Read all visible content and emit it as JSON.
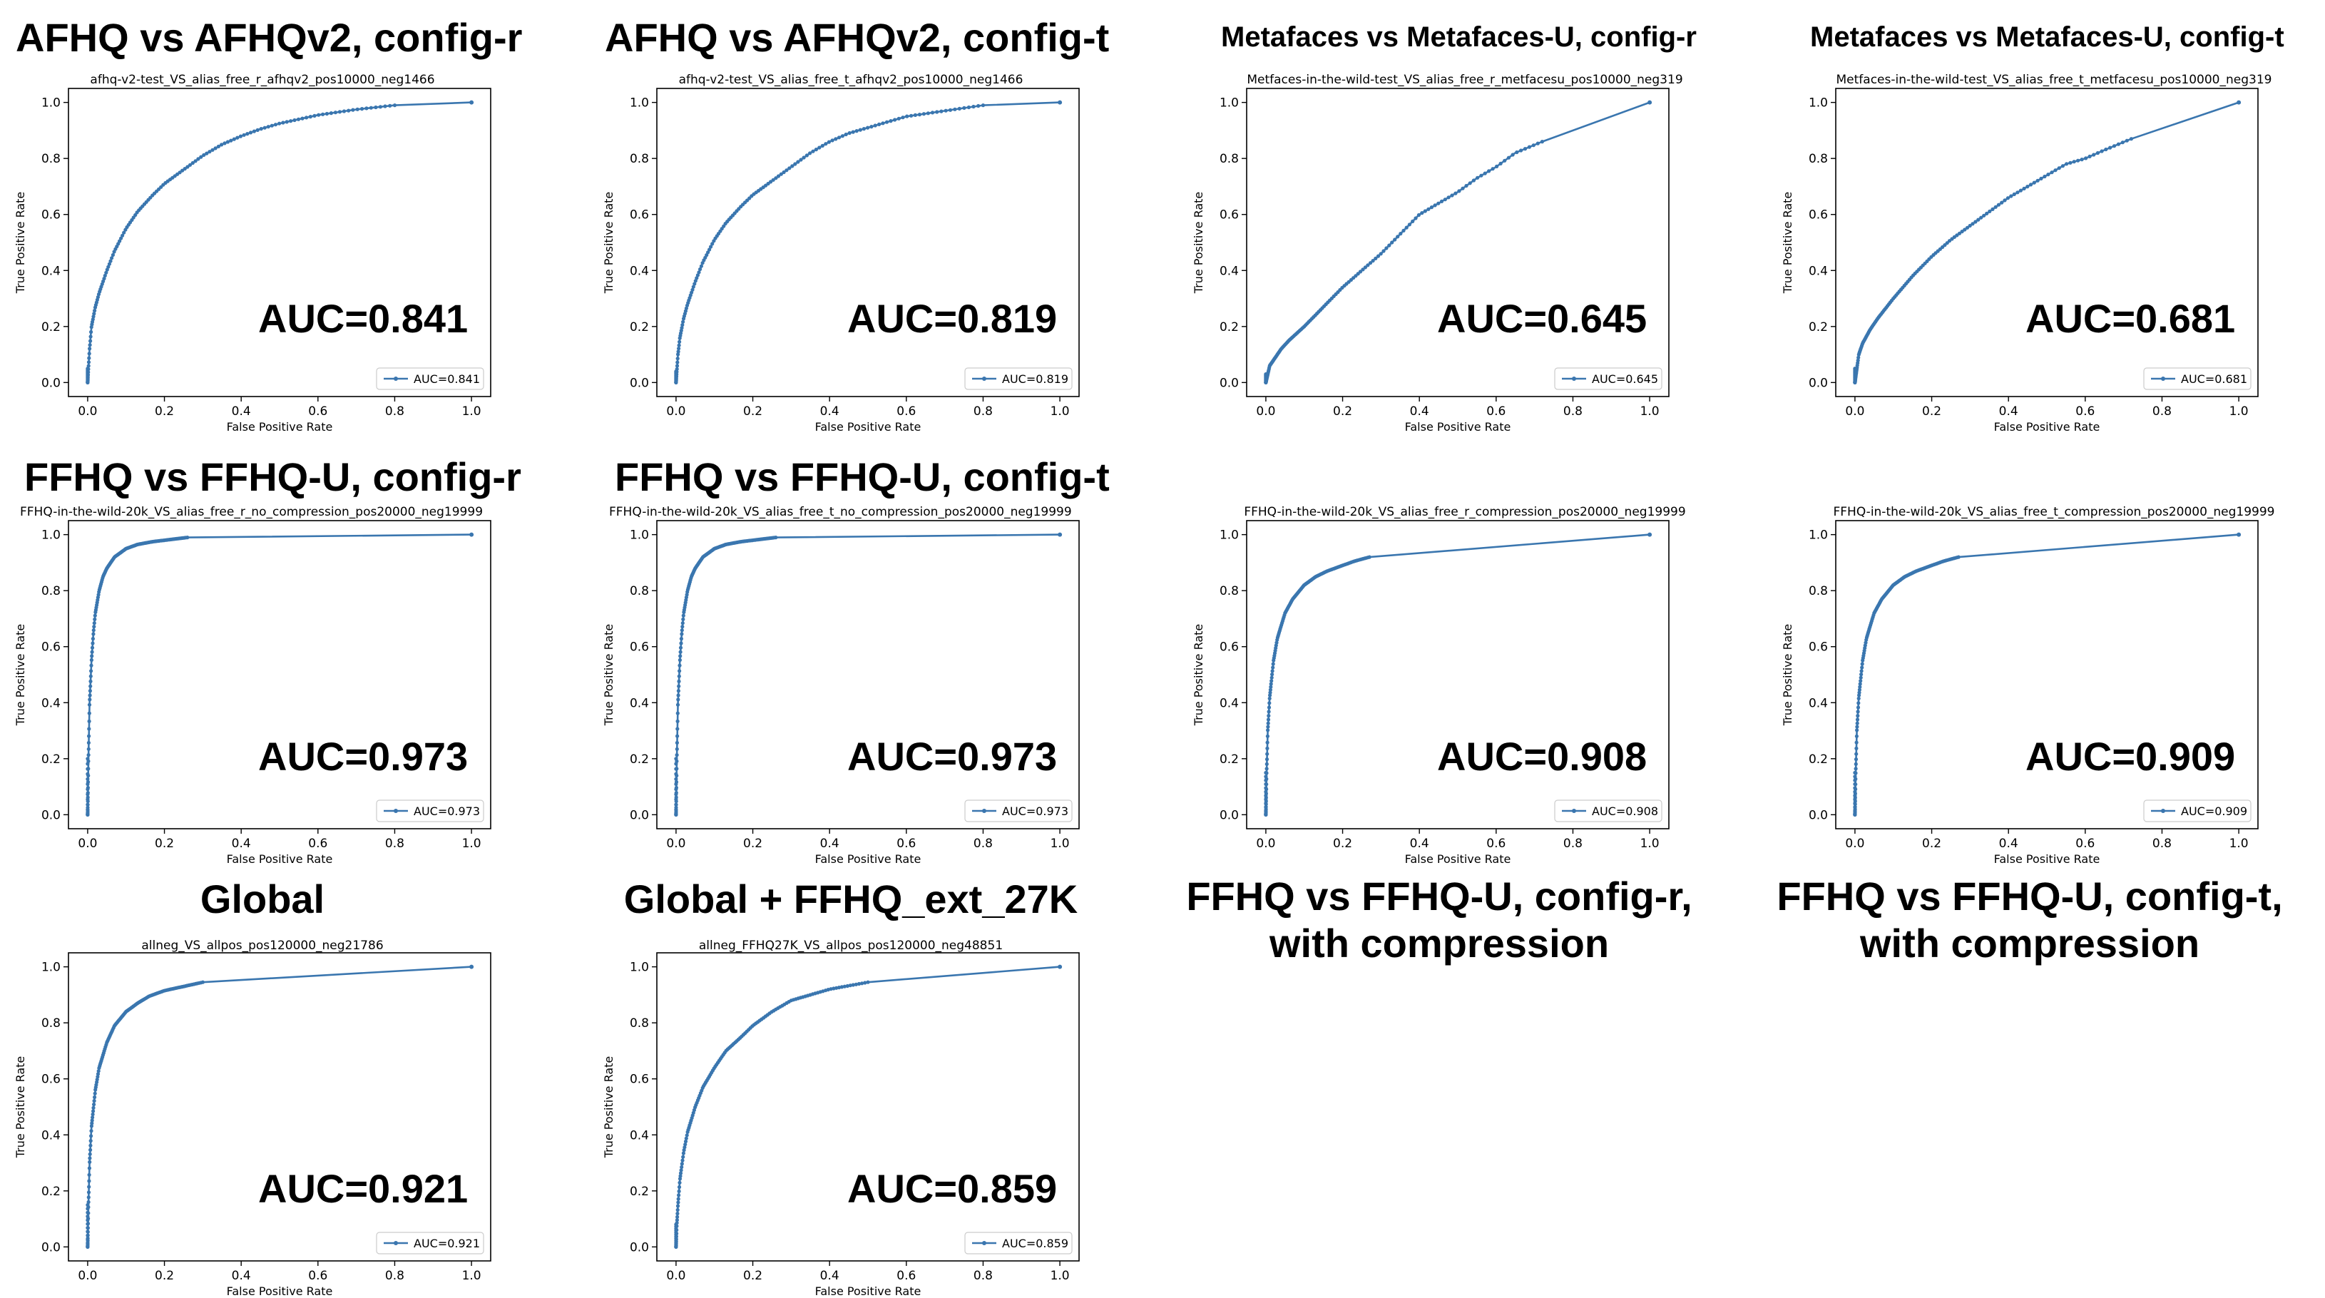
{
  "chart_data": [
    {
      "type": "line",
      "panel_title": "AFHQ vs AFHQv2, config-r",
      "title": "afhq-v2-test_VS_alias_free_r_afhqv2_pos10000_neg1466",
      "xlabel": "False Positive Rate",
      "ylabel": "True Positive Rate",
      "xlim": [
        0,
        1
      ],
      "ylim": [
        0,
        1
      ],
      "xticks": [
        "0.0",
        "0.2",
        "0.4",
        "0.6",
        "0.8",
        "1.0"
      ],
      "yticks": [
        "0.0",
        "0.2",
        "0.4",
        "0.6",
        "0.8",
        "1.0"
      ],
      "legend": "AUC=0.841",
      "legend_position": "lower-right",
      "annotation": "AUC=0.841",
      "series": [
        {
          "name": "AUC=0.841",
          "x": [
            0,
            0.002,
            0.005,
            0.01,
            0.02,
            0.03,
            0.05,
            0.07,
            0.1,
            0.13,
            0.17,
            0.2,
            0.25,
            0.3,
            0.35,
            0.4,
            0.45,
            0.5,
            0.55,
            0.6,
            0.65,
            0.7,
            0.8,
            1.0
          ],
          "y": [
            0,
            0.05,
            0.12,
            0.2,
            0.27,
            0.32,
            0.4,
            0.47,
            0.55,
            0.61,
            0.67,
            0.71,
            0.76,
            0.81,
            0.85,
            0.88,
            0.905,
            0.925,
            0.94,
            0.955,
            0.965,
            0.975,
            0.99,
            1.0
          ]
        }
      ]
    },
    {
      "type": "line",
      "panel_title": "AFHQ vs AFHQv2, config-t",
      "title": "afhq-v2-test_VS_alias_free_t_afhqv2_pos10000_neg1466",
      "xlabel": "False Positive Rate",
      "ylabel": "True Positive Rate",
      "xlim": [
        0,
        1
      ],
      "ylim": [
        0,
        1
      ],
      "xticks": [
        "0.0",
        "0.2",
        "0.4",
        "0.6",
        "0.8",
        "1.0"
      ],
      "yticks": [
        "0.0",
        "0.2",
        "0.4",
        "0.6",
        "0.8",
        "1.0"
      ],
      "legend": "AUC=0.819",
      "legend_position": "lower-right",
      "annotation": "AUC=0.819",
      "series": [
        {
          "name": "AUC=0.819",
          "x": [
            0,
            0.002,
            0.005,
            0.01,
            0.02,
            0.03,
            0.05,
            0.07,
            0.1,
            0.13,
            0.17,
            0.2,
            0.25,
            0.3,
            0.35,
            0.4,
            0.45,
            0.5,
            0.55,
            0.6,
            0.7,
            0.8,
            1.0
          ],
          "y": [
            0,
            0.04,
            0.1,
            0.16,
            0.23,
            0.28,
            0.36,
            0.43,
            0.51,
            0.57,
            0.63,
            0.67,
            0.72,
            0.77,
            0.82,
            0.86,
            0.89,
            0.91,
            0.93,
            0.95,
            0.97,
            0.99,
            1.0
          ]
        }
      ]
    },
    {
      "type": "line",
      "panel_title": "Metafaces vs Metafaces-U, config-r",
      "title": "Metfaces-in-the-wild-test_VS_alias_free_r_metfacesu_pos10000_neg319",
      "xlabel": "False Positive Rate",
      "ylabel": "True Positive Rate",
      "xlim": [
        0,
        1
      ],
      "ylim": [
        0,
        1
      ],
      "xticks": [
        "0.0",
        "0.2",
        "0.4",
        "0.6",
        "0.8",
        "1.0"
      ],
      "yticks": [
        "0.0",
        "0.2",
        "0.4",
        "0.6",
        "0.8",
        "1.0"
      ],
      "legend": "AUC=0.645",
      "legend_position": "lower-right",
      "annotation": "AUC=0.645",
      "series": [
        {
          "name": "AUC=0.645",
          "x": [
            0,
            0.005,
            0.01,
            0.02,
            0.04,
            0.06,
            0.1,
            0.15,
            0.2,
            0.25,
            0.3,
            0.35,
            0.4,
            0.45,
            0.5,
            0.55,
            0.6,
            0.65,
            0.72,
            1.0
          ],
          "y": [
            0,
            0.03,
            0.06,
            0.08,
            0.12,
            0.15,
            0.2,
            0.27,
            0.34,
            0.4,
            0.46,
            0.53,
            0.6,
            0.64,
            0.68,
            0.73,
            0.77,
            0.82,
            0.86,
            1.0
          ]
        }
      ]
    },
    {
      "type": "line",
      "panel_title": "Metafaces vs Metafaces-U, config-t",
      "title": "Metfaces-in-the-wild-test_VS_alias_free_t_metfacesu_pos10000_neg319",
      "xlabel": "False Positive Rate",
      "ylabel": "True Positive Rate",
      "xlim": [
        0,
        1
      ],
      "ylim": [
        0,
        1
      ],
      "xticks": [
        "0.0",
        "0.2",
        "0.4",
        "0.6",
        "0.8",
        "1.0"
      ],
      "yticks": [
        "0.0",
        "0.2",
        "0.4",
        "0.6",
        "0.8",
        "1.0"
      ],
      "legend": "AUC=0.681",
      "legend_position": "lower-right",
      "annotation": "AUC=0.681",
      "series": [
        {
          "name": "AUC=0.681",
          "x": [
            0,
            0.005,
            0.01,
            0.02,
            0.04,
            0.06,
            0.1,
            0.15,
            0.2,
            0.25,
            0.3,
            0.35,
            0.4,
            0.45,
            0.5,
            0.55,
            0.6,
            0.65,
            0.72,
            1.0
          ],
          "y": [
            0,
            0.05,
            0.1,
            0.14,
            0.19,
            0.23,
            0.3,
            0.38,
            0.45,
            0.51,
            0.56,
            0.61,
            0.66,
            0.7,
            0.74,
            0.78,
            0.8,
            0.83,
            0.87,
            1.0
          ]
        }
      ]
    },
    {
      "type": "line",
      "panel_title": "FFHQ vs FFHQ-U, config-r",
      "title": "FFHQ-in-the-wild-20k_VS_alias_free_r_no_compression_pos20000_neg19999",
      "xlabel": "False Positive Rate",
      "ylabel": "True Positive Rate",
      "xlim": [
        0,
        1
      ],
      "ylim": [
        0,
        1
      ],
      "xticks": [
        "0.0",
        "0.2",
        "0.4",
        "0.6",
        "0.8",
        "1.0"
      ],
      "yticks": [
        "0.0",
        "0.2",
        "0.4",
        "0.6",
        "0.8",
        "1.0"
      ],
      "legend": "AUC=0.973",
      "legend_position": "lower-right",
      "annotation": "AUC=0.973",
      "series": [
        {
          "name": "AUC=0.973",
          "x": [
            0,
            0.002,
            0.005,
            0.01,
            0.015,
            0.02,
            0.03,
            0.04,
            0.05,
            0.07,
            0.1,
            0.13,
            0.17,
            0.2,
            0.26,
            1.0
          ],
          "y": [
            0,
            0.2,
            0.4,
            0.55,
            0.65,
            0.72,
            0.8,
            0.85,
            0.88,
            0.92,
            0.95,
            0.965,
            0.975,
            0.98,
            0.99,
            1.0
          ]
        }
      ]
    },
    {
      "type": "line",
      "panel_title": "FFHQ vs FFHQ-U, config-t",
      "title": "FFHQ-in-the-wild-20k_VS_alias_free_t_no_compression_pos20000_neg19999",
      "xlabel": "False Positive Rate",
      "ylabel": "True Positive Rate",
      "xlim": [
        0,
        1
      ],
      "ylim": [
        0,
        1
      ],
      "xticks": [
        "0.0",
        "0.2",
        "0.4",
        "0.6",
        "0.8",
        "1.0"
      ],
      "yticks": [
        "0.0",
        "0.2",
        "0.4",
        "0.6",
        "0.8",
        "1.0"
      ],
      "legend": "AUC=0.973",
      "legend_position": "lower-right",
      "annotation": "AUC=0.973",
      "series": [
        {
          "name": "AUC=0.973",
          "x": [
            0,
            0.002,
            0.005,
            0.01,
            0.015,
            0.02,
            0.03,
            0.04,
            0.05,
            0.07,
            0.1,
            0.13,
            0.17,
            0.2,
            0.26,
            1.0
          ],
          "y": [
            0,
            0.2,
            0.4,
            0.55,
            0.65,
            0.72,
            0.8,
            0.85,
            0.88,
            0.92,
            0.95,
            0.965,
            0.975,
            0.98,
            0.99,
            1.0
          ]
        }
      ]
    },
    {
      "type": "line",
      "panel_title": "FFHQ vs FFHQ-U, config-r, with compression",
      "title": "FFHQ-in-the-wild-20k_VS_alias_free_r_compression_pos20000_neg19999",
      "xlabel": "False Positive Rate",
      "ylabel": "True Positive Rate",
      "xlim": [
        0,
        1
      ],
      "ylim": [
        0,
        1
      ],
      "xticks": [
        "0.0",
        "0.2",
        "0.4",
        "0.6",
        "0.8",
        "1.0"
      ],
      "yticks": [
        "0.0",
        "0.2",
        "0.4",
        "0.6",
        "0.8",
        "1.0"
      ],
      "legend": "AUC=0.908",
      "legend_position": "lower-right",
      "annotation": "AUC=0.908",
      "series": [
        {
          "name": "AUC=0.908",
          "x": [
            0,
            0.002,
            0.005,
            0.01,
            0.02,
            0.03,
            0.05,
            0.07,
            0.1,
            0.13,
            0.16,
            0.2,
            0.23,
            0.27,
            1.0
          ],
          "y": [
            0,
            0.15,
            0.3,
            0.42,
            0.55,
            0.63,
            0.72,
            0.77,
            0.82,
            0.85,
            0.87,
            0.89,
            0.905,
            0.92,
            1.0
          ]
        }
      ]
    },
    {
      "type": "line",
      "panel_title": "FFHQ vs FFHQ-U, config-t, with compression",
      "title": "FFHQ-in-the-wild-20k_VS_alias_free_t_compression_pos20000_neg19999",
      "xlabel": "False Positive Rate",
      "ylabel": "True Positive Rate",
      "xlim": [
        0,
        1
      ],
      "ylim": [
        0,
        1
      ],
      "xticks": [
        "0.0",
        "0.2",
        "0.4",
        "0.6",
        "0.8",
        "1.0"
      ],
      "yticks": [
        "0.0",
        "0.2",
        "0.4",
        "0.6",
        "0.8",
        "1.0"
      ],
      "legend": "AUC=0.909",
      "legend_position": "lower-right",
      "annotation": "AUC=0.909",
      "series": [
        {
          "name": "AUC=0.909",
          "x": [
            0,
            0.002,
            0.005,
            0.01,
            0.02,
            0.03,
            0.05,
            0.07,
            0.1,
            0.13,
            0.16,
            0.2,
            0.23,
            0.27,
            1.0
          ],
          "y": [
            0,
            0.15,
            0.3,
            0.42,
            0.55,
            0.63,
            0.72,
            0.77,
            0.82,
            0.85,
            0.87,
            0.89,
            0.905,
            0.92,
            1.0
          ]
        }
      ]
    },
    {
      "type": "line",
      "panel_title": "Global",
      "title": "allneg_VS_allpos_pos120000_neg21786",
      "xlabel": "False Positive Rate",
      "ylabel": "True Positive Rate",
      "xlim": [
        0,
        1
      ],
      "ylim": [
        0,
        1
      ],
      "xticks": [
        "0.0",
        "0.2",
        "0.4",
        "0.6",
        "0.8",
        "1.0"
      ],
      "yticks": [
        "0.0",
        "0.2",
        "0.4",
        "0.6",
        "0.8",
        "1.0"
      ],
      "legend": "AUC=0.921",
      "legend_position": "lower-right",
      "annotation": "AUC=0.921",
      "series": [
        {
          "name": "AUC=0.921",
          "x": [
            0,
            0.002,
            0.005,
            0.01,
            0.02,
            0.03,
            0.05,
            0.07,
            0.1,
            0.13,
            0.16,
            0.2,
            0.25,
            0.3,
            1.0
          ],
          "y": [
            0,
            0.15,
            0.3,
            0.43,
            0.56,
            0.64,
            0.73,
            0.79,
            0.84,
            0.87,
            0.895,
            0.915,
            0.93,
            0.945,
            1.0
          ]
        }
      ]
    },
    {
      "type": "line",
      "panel_title": "Global + FFHQ_ext_27K",
      "title": "allneg_FFHQ27K_VS_allpos_pos120000_neg48851",
      "xlabel": "False Positive Rate",
      "ylabel": "True Positive Rate",
      "xlim": [
        0,
        1
      ],
      "ylim": [
        0,
        1
      ],
      "xticks": [
        "0.0",
        "0.2",
        "0.4",
        "0.6",
        "0.8",
        "1.0"
      ],
      "yticks": [
        "0.0",
        "0.2",
        "0.4",
        "0.6",
        "0.8",
        "1.0"
      ],
      "legend": "AUC=0.859",
      "legend_position": "lower-right",
      "annotation": "AUC=0.859",
      "series": [
        {
          "name": "AUC=0.859",
          "x": [
            0,
            0.002,
            0.005,
            0.01,
            0.02,
            0.03,
            0.05,
            0.07,
            0.1,
            0.13,
            0.17,
            0.2,
            0.25,
            0.3,
            0.35,
            0.4,
            0.5,
            1.0
          ],
          "y": [
            0,
            0.08,
            0.15,
            0.24,
            0.34,
            0.41,
            0.5,
            0.57,
            0.64,
            0.7,
            0.75,
            0.79,
            0.84,
            0.88,
            0.9,
            0.92,
            0.945,
            1.0
          ]
        }
      ]
    }
  ]
}
